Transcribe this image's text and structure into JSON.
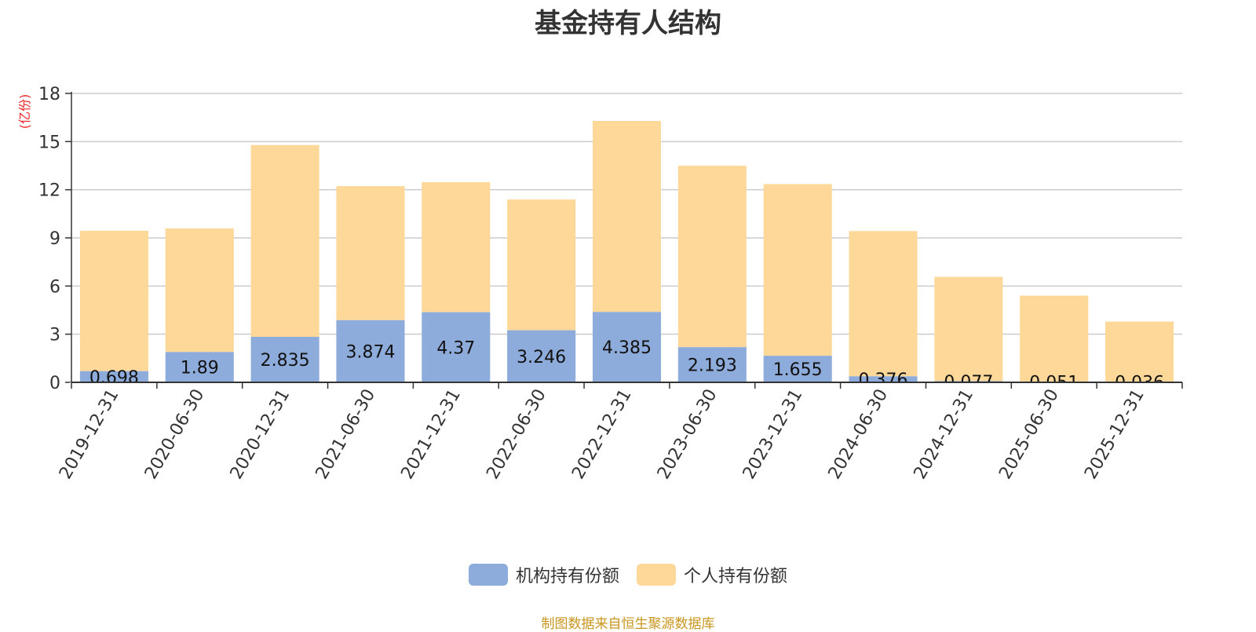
{
  "chart_data": {
    "type": "bar",
    "stacked": true,
    "title": "基金持有人结构",
    "ylabel": "(亿份)",
    "xlabel": "",
    "ylim": [
      0,
      18
    ],
    "yticks": [
      0,
      3,
      6,
      9,
      12,
      15,
      18
    ],
    "grid": true,
    "legend_position": "bottom-center",
    "categories": [
      "2019-12-31",
      "2020-06-30",
      "2020-12-31",
      "2021-06-30",
      "2021-12-31",
      "2022-06-30",
      "2022-12-31",
      "2023-06-30",
      "2023-12-31",
      "2024-06-30",
      "2024-12-31",
      "2025-06-30",
      "2025-12-31"
    ],
    "series": [
      {
        "name": "机构持有份额",
        "color": "#8eacdb",
        "values": [
          0.698,
          1.89,
          2.835,
          3.874,
          4.37,
          3.246,
          4.385,
          2.193,
          1.655,
          0.376,
          0.077,
          0.051,
          0.036
        ],
        "labels": [
          "0.698",
          "1.89",
          "2.835",
          "3.874",
          "4.37",
          "3.246",
          "4.385",
          "2.193",
          "1.655",
          "0.376",
          "0.077",
          "0.051",
          "0.036"
        ]
      },
      {
        "name": "个人持有份额",
        "color": "#fed899",
        "values": [
          8.75,
          7.7,
          11.95,
          8.35,
          8.1,
          8.15,
          11.9,
          11.3,
          10.7,
          9.05,
          6.5,
          5.35,
          3.75
        ]
      }
    ]
  },
  "footer": {
    "source": "制图数据来自恒生聚源数据库"
  },
  "colors": {
    "ylabel": "#e8282b",
    "axis": "#333333",
    "grid": "#cccccc",
    "source": "#c8961e"
  }
}
